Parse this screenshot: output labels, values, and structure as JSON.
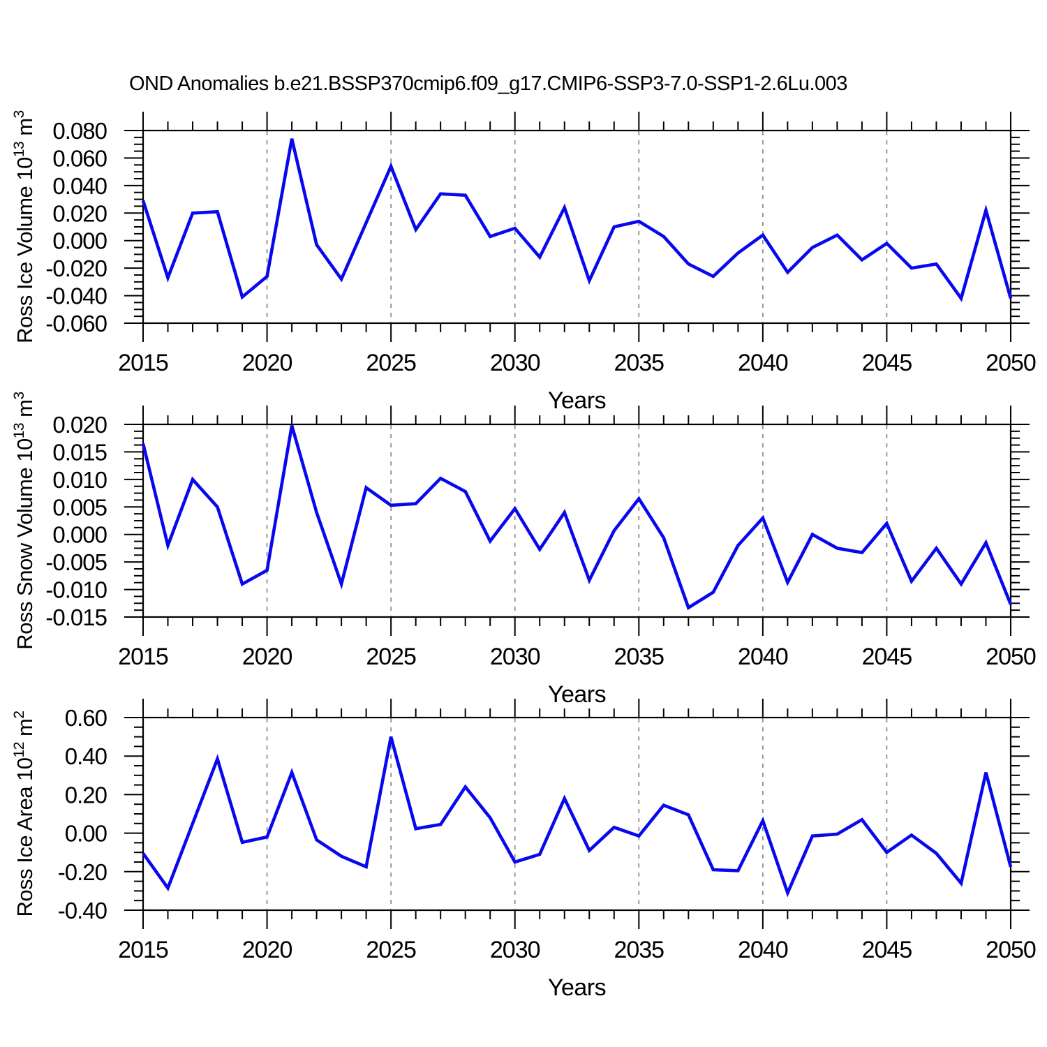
{
  "title": "OND Anomalies b.e21.BSSP370cmip6.f09_g17.CMIP6-SSP3-7.0-SSP1-2.6Lu.003",
  "line_color": "#0808EE",
  "grid_color": "#8a8a8a",
  "frame_color": "#000000",
  "years": [
    2015,
    2016,
    2017,
    2018,
    2019,
    2020,
    2021,
    2022,
    2023,
    2024,
    2025,
    2026,
    2027,
    2028,
    2029,
    2030,
    2031,
    2032,
    2033,
    2034,
    2035,
    2036,
    2037,
    2038,
    2039,
    2040,
    2041,
    2042,
    2043,
    2044,
    2045,
    2046,
    2047,
    2048,
    2049,
    2050
  ],
  "chart_data": [
    {
      "type": "line",
      "name": "ross-ice-volume",
      "title": "",
      "ylabel": "Ross Ice Volume 10^13 m^3",
      "ylabel_segments": [
        [
          "t",
          "Ross Ice Volume 10"
        ],
        [
          "s",
          "13"
        ],
        [
          "t",
          " m"
        ],
        [
          "s",
          "3"
        ]
      ],
      "xlabel": "Years",
      "xlim": [
        2015,
        2050
      ],
      "ylim": [
        -0.06,
        0.08
      ],
      "ytick_major": 0.02,
      "ytick_minor": 0.005,
      "ytick_decimals": 3,
      "xtick_major": 5,
      "xtick_minor": 1,
      "grid_on": true,
      "gridlines_x": [
        2020,
        2025,
        2030,
        2035,
        2040,
        2045
      ],
      "values": [
        0.029,
        -0.027,
        0.02,
        0.021,
        -0.041,
        -0.026,
        0.074,
        -0.003,
        -0.028,
        0.013,
        0.054,
        0.008,
        0.034,
        0.033,
        0.003,
        0.009,
        -0.012,
        0.024,
        -0.029,
        0.01,
        0.014,
        0.003,
        -0.017,
        -0.026,
        -0.009,
        0.004,
        -0.023,
        -0.005,
        0.004,
        -0.014,
        -0.002,
        -0.02,
        -0.017,
        -0.042,
        0.022,
        -0.042
      ]
    },
    {
      "type": "line",
      "name": "ross-snow-volume",
      "title": "",
      "ylabel": "Ross Snow Volume 10^13 m^3",
      "ylabel_segments": [
        [
          "t",
          "Ross Snow Volume 10"
        ],
        [
          "s",
          "13"
        ],
        [
          "t",
          " m"
        ],
        [
          "s",
          "3"
        ]
      ],
      "xlabel": "Years",
      "xlim": [
        2015,
        2050
      ],
      "ylim": [
        -0.015,
        0.02
      ],
      "ytick_major": 0.005,
      "ytick_minor": 0.00125,
      "ytick_decimals": 3,
      "xtick_major": 5,
      "xtick_minor": 1,
      "grid_on": true,
      "gridlines_x": [
        2020,
        2025,
        2030,
        2035,
        2040,
        2045
      ],
      "values": [
        0.0165,
        -0.002,
        0.01,
        0.005,
        -0.009,
        -0.0065,
        0.0198,
        0.004,
        -0.009,
        0.0085,
        0.0053,
        0.0056,
        0.0102,
        0.0078,
        -0.0012,
        0.0047,
        -0.0027,
        0.004,
        -0.0083,
        0.0007,
        0.0065,
        -0.0006,
        -0.0133,
        -0.0105,
        -0.002,
        0.003,
        -0.0087,
        0.0,
        -0.0025,
        -0.0033,
        0.002,
        -0.0085,
        -0.0025,
        -0.009,
        -0.0015,
        -0.0127
      ]
    },
    {
      "type": "line",
      "name": "ross-ice-area",
      "title": "",
      "ylabel": "Ross Ice Area 10^12 m^2",
      "ylabel_segments": [
        [
          "t",
          "Ross Ice Area 10"
        ],
        [
          "s",
          "12"
        ],
        [
          "t",
          " m"
        ],
        [
          "s",
          "2"
        ]
      ],
      "xlabel": "Years",
      "xlim": [
        2015,
        2050
      ],
      "ylim": [
        -0.4,
        0.6
      ],
      "ytick_major": 0.2,
      "ytick_minor": 0.05,
      "ytick_decimals": 2,
      "xtick_major": 5,
      "xtick_minor": 1,
      "grid_on": true,
      "gridlines_x": [
        2020,
        2025,
        2030,
        2035,
        2040,
        2045
      ],
      "values": [
        -0.105,
        -0.285,
        0.05,
        0.385,
        -0.048,
        -0.02,
        0.315,
        -0.035,
        -0.12,
        -0.175,
        0.5,
        0.023,
        0.045,
        0.24,
        0.08,
        -0.15,
        -0.11,
        0.18,
        -0.09,
        0.03,
        -0.015,
        0.145,
        0.095,
        -0.19,
        -0.195,
        0.065,
        -0.31,
        -0.015,
        -0.005,
        0.07,
        -0.1,
        -0.01,
        -0.105,
        -0.26,
        0.315,
        -0.175
      ]
    }
  ]
}
